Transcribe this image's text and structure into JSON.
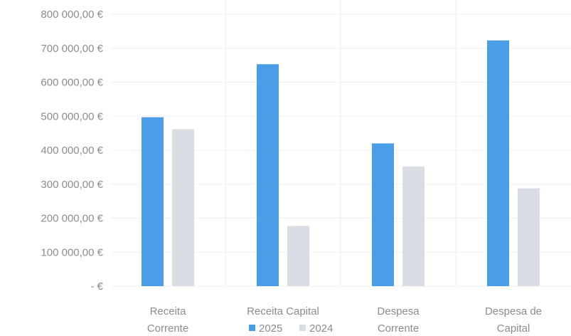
{
  "chart_data": {
    "type": "bar",
    "categories": [
      [
        "Receita",
        "Corrente"
      ],
      [
        "Receita Capital"
      ],
      [
        "Despesa",
        "Corrente"
      ],
      [
        "Despesa de",
        "Capital"
      ]
    ],
    "series": [
      {
        "name": "2025",
        "values": [
          497000,
          653000,
          420000,
          723000
        ],
        "color": "#4a9ee8"
      },
      {
        "name": "2024",
        "values": [
          462000,
          177000,
          352000,
          288000
        ],
        "color": "#d9dee5"
      }
    ],
    "ylim": [
      0,
      800000
    ],
    "yticks": [
      0,
      100000,
      200000,
      300000,
      400000,
      500000,
      600000,
      700000,
      800000
    ],
    "ytick_labels": [
      "- €",
      "100 000,00 €",
      "200 000,00 €",
      "300 000,00 €",
      "400 000,00 €",
      "500 000,00 €",
      "600 000,00 €",
      "700 000,00 €",
      "800 000,00 €"
    ],
    "grid": true,
    "legend": "bottom-center",
    "title": "",
    "xlabel": "",
    "ylabel": ""
  }
}
